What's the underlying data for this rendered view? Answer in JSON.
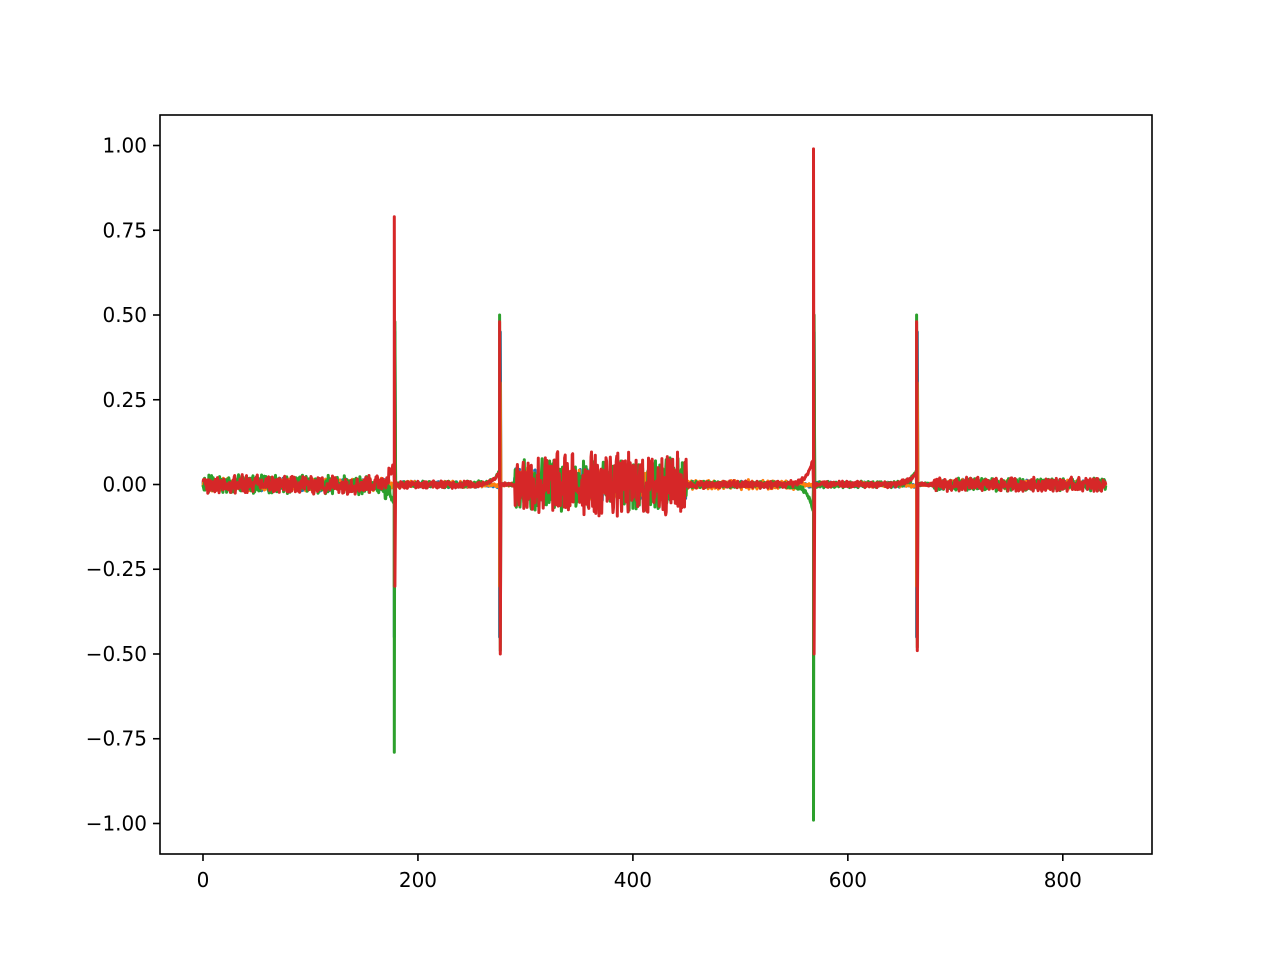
{
  "chart_data": {
    "type": "line",
    "title": "",
    "xlabel": "",
    "ylabel": "",
    "xlim": [
      -40,
      883
    ],
    "ylim": [
      -1.09,
      1.09
    ],
    "x_ticks": [
      0,
      200,
      400,
      600,
      800
    ],
    "y_ticks": [
      1.0,
      0.75,
      0.5,
      0.25,
      0.0,
      -0.25,
      -0.5,
      -0.75,
      -1.0
    ],
    "x_tick_labels": [
      "0",
      "200",
      "400",
      "600",
      "800"
    ],
    "y_tick_labels": [
      "1.00",
      "0.75",
      "0.50",
      "0.25",
      "0.00",
      "−0.25",
      "−0.50",
      "−0.75",
      "−1.00"
    ],
    "grid": false,
    "legend": "none",
    "x_range": [
      0,
      840
    ],
    "series": [
      {
        "color": "#1f77b4",
        "noise_segments": [
          [
            0,
            175,
            0.02
          ],
          [
            175,
            260,
            0.01
          ],
          [
            290,
            450,
            0.05
          ],
          [
            450,
            560,
            0.01
          ],
          [
            570,
            660,
            0.008
          ],
          [
            680,
            840,
            0.015
          ]
        ],
        "spikes": [
          [
            178,
            -0.45,
            0.45
          ],
          [
            276,
            -0.45,
            0.45
          ],
          [
            568,
            -0.45,
            0.45
          ],
          [
            664,
            -0.45,
            0.45
          ]
        ]
      },
      {
        "color": "#ff7f0e",
        "noise_segments": [
          [
            0,
            175,
            0.02
          ],
          [
            175,
            260,
            0.01
          ],
          [
            290,
            450,
            0.05
          ],
          [
            450,
            560,
            0.015
          ],
          [
            570,
            660,
            0.008
          ],
          [
            680,
            840,
            0.015
          ]
        ],
        "spikes": [
          [
            178,
            -0.3,
            0.3
          ],
          [
            276,
            -0.3,
            0.3
          ],
          [
            568,
            -0.3,
            0.3
          ],
          [
            664,
            -0.3,
            0.3
          ]
        ]
      },
      {
        "color": "#2ca02c",
        "noise_segments": [
          [
            0,
            175,
            0.03
          ],
          [
            175,
            260,
            0.01
          ],
          [
            290,
            450,
            0.08
          ],
          [
            450,
            560,
            0.01
          ],
          [
            570,
            660,
            0.01
          ],
          [
            680,
            840,
            0.02
          ]
        ],
        "spikes": [
          [
            178,
            -0.79,
            0.48
          ],
          [
            276,
            0.5,
            -0.49
          ],
          [
            568,
            -0.99,
            0.5
          ],
          [
            664,
            0.5,
            -0.48
          ]
        ]
      },
      {
        "color": "#d62728",
        "noise_segments": [
          [
            0,
            175,
            0.03
          ],
          [
            175,
            260,
            0.012
          ],
          [
            290,
            450,
            0.1
          ],
          [
            450,
            560,
            0.012
          ],
          [
            570,
            660,
            0.01
          ],
          [
            680,
            840,
            0.022
          ]
        ],
        "spikes": [
          [
            178,
            0.79,
            -0.3
          ],
          [
            276,
            0.48,
            -0.5
          ],
          [
            568,
            0.99,
            -0.5
          ],
          [
            664,
            0.48,
            -0.49
          ]
        ]
      }
    ]
  }
}
